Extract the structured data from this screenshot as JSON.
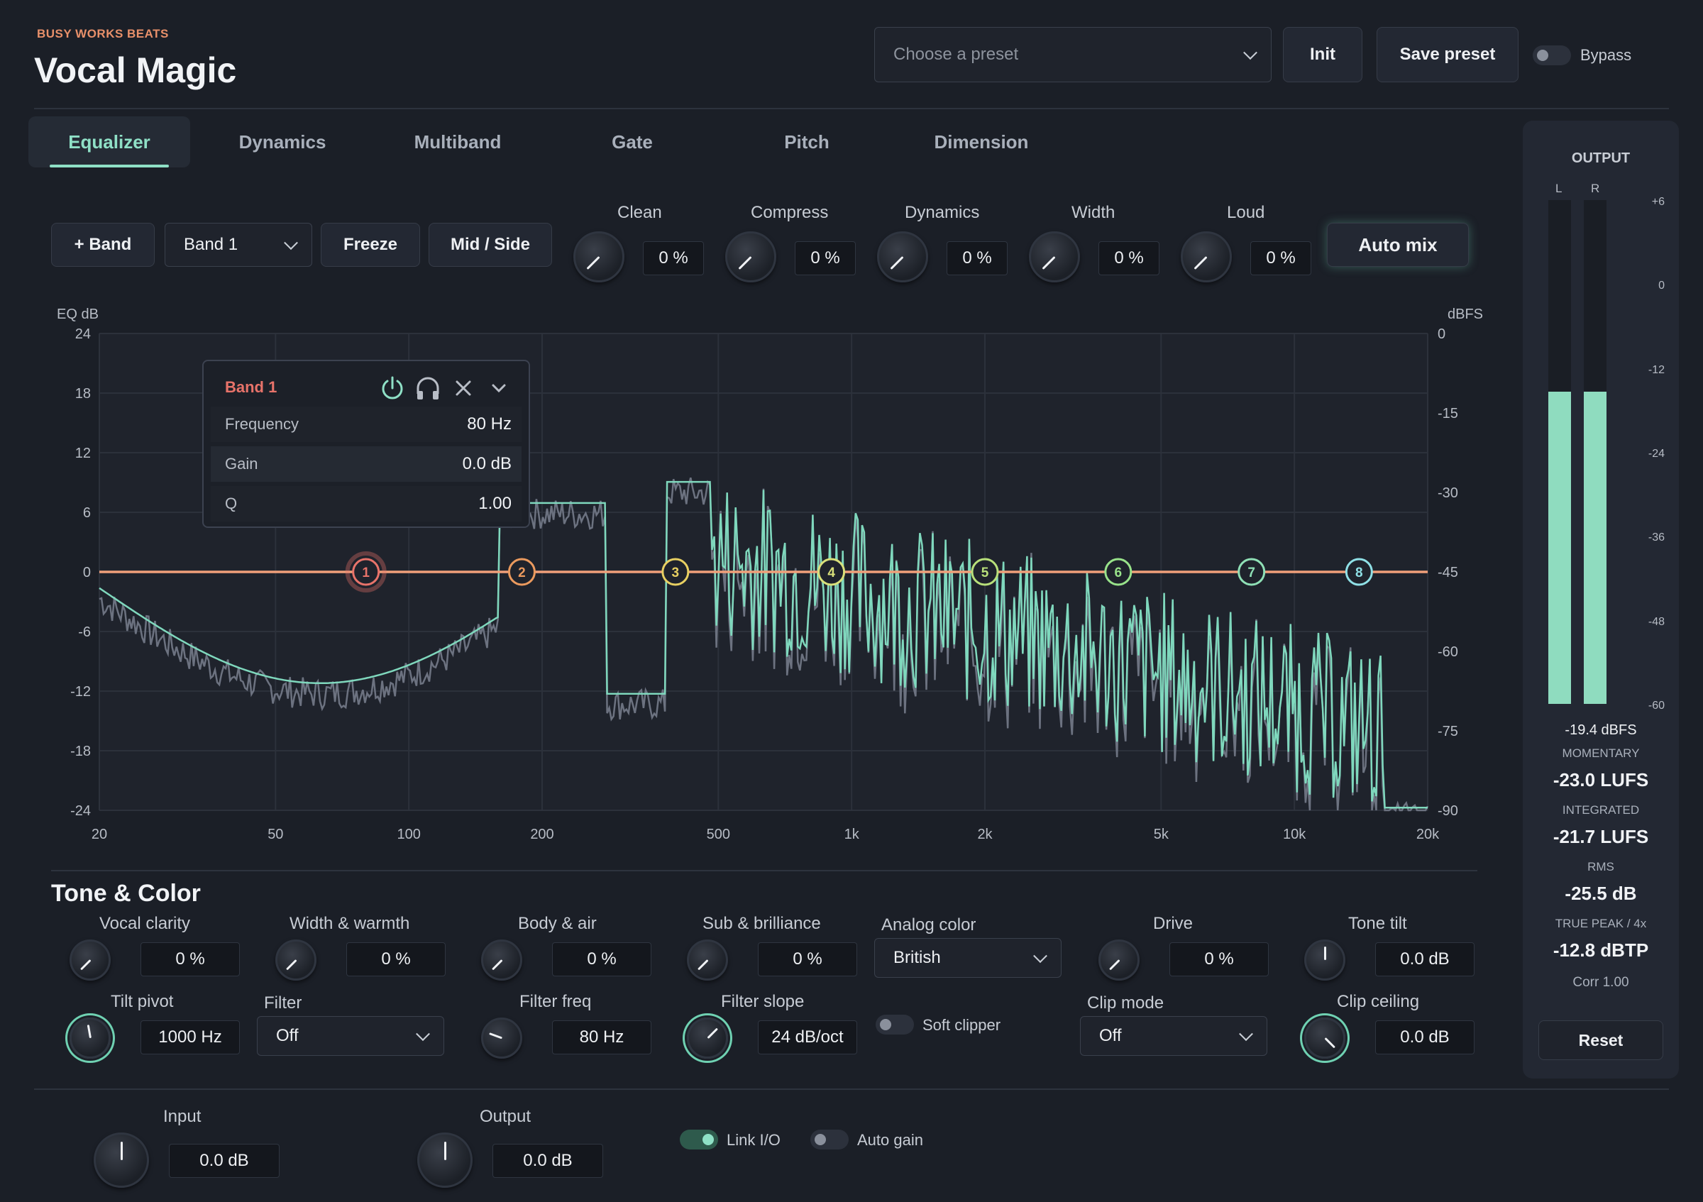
{
  "header": {
    "brand": "BUSY WORKS BEATS",
    "title": "Vocal Magic",
    "preset_placeholder": "Choose a preset",
    "init_label": "Init",
    "save_label": "Save preset",
    "bypass_label": "Bypass"
  },
  "tabs": [
    {
      "label": "Equalizer",
      "active": true
    },
    {
      "label": "Dynamics"
    },
    {
      "label": "Multiband"
    },
    {
      "label": "Gate"
    },
    {
      "label": "Pitch"
    },
    {
      "label": "Dimension"
    }
  ],
  "toolbar": {
    "add_band_label": "+ Band",
    "band_select": "Band 1",
    "freeze_label": "Freeze",
    "midside_label": "Mid / Side",
    "automix_label": "Auto mix",
    "macros": [
      {
        "label": "Clean",
        "value": "0 %"
      },
      {
        "label": "Compress",
        "value": "0 %"
      },
      {
        "label": "Dynamics",
        "value": "0 %"
      },
      {
        "label": "Width",
        "value": "0 %"
      },
      {
        "label": "Loud",
        "value": "0 %"
      }
    ]
  },
  "eq": {
    "left_axis_title": "EQ dB",
    "right_axis_title": "dBFS",
    "left_ticks": [
      "24",
      "18",
      "12",
      "6",
      "0",
      "-6",
      "-12",
      "-18",
      "-24"
    ],
    "right_ticks": [
      "0",
      "-15",
      "-30",
      "-45",
      "-60",
      "-75",
      "-90"
    ],
    "freq_ticks": [
      "20",
      "50",
      "100",
      "200",
      "500",
      "1k",
      "2k",
      "5k",
      "10k",
      "20k"
    ],
    "accent_line": "#f0a07a",
    "spectrum_color": "#7fd8bd",
    "bands": [
      {
        "n": "1",
        "freq_hz": 80,
        "color": "#e8736a"
      },
      {
        "n": "2",
        "freq_hz": 180,
        "color": "#eb9a5e"
      },
      {
        "n": "3",
        "freq_hz": 400,
        "color": "#e8d062"
      },
      {
        "n": "4",
        "freq_hz": 900,
        "color": "#d9e07a"
      },
      {
        "n": "5",
        "freq_hz": 2000,
        "color": "#b8e07a"
      },
      {
        "n": "6",
        "freq_hz": 4000,
        "color": "#98e28a"
      },
      {
        "n": "7",
        "freq_hz": 8000,
        "color": "#8fe0b6"
      },
      {
        "n": "8",
        "freq_hz": 14000,
        "color": "#8fe0e6"
      }
    ],
    "popup": {
      "title": "Band 1",
      "freq_label": "Frequency",
      "freq_value": "80 Hz",
      "gain_label": "Gain",
      "gain_value": "0.0 dB",
      "q_label": "Q",
      "q_value": "1.00"
    }
  },
  "tone": {
    "heading": "Tone & Color",
    "row1": [
      {
        "label": "Vocal clarity",
        "value": "0 %"
      },
      {
        "label": "Width & warmth",
        "value": "0 %"
      },
      {
        "label": "Body & air",
        "value": "0 %"
      },
      {
        "label": "Sub & brilliance",
        "value": "0 %"
      }
    ],
    "analog_label": "Analog color",
    "analog_value": "British",
    "drive_label": "Drive",
    "drive_value": "0 %",
    "tilt_label": "Tone tilt",
    "tilt_value": "0.0 dB",
    "pivot_label": "Tilt pivot",
    "pivot_value": "1000 Hz",
    "filter_label": "Filter",
    "filter_value": "Off",
    "filter_freq_label": "Filter freq",
    "filter_freq_value": "80 Hz",
    "filter_slope_label": "Filter slope",
    "filter_slope_value": "24 dB/oct",
    "soft_clipper_label": "Soft clipper",
    "clip_mode_label": "Clip mode",
    "clip_mode_value": "Off",
    "clip_ceiling_label": "Clip ceiling",
    "clip_ceiling_value": "0.0 dB"
  },
  "footer": {
    "input_label": "Input",
    "input_value": "0.0 dB",
    "output_label": "Output",
    "output_value": "0.0 dB",
    "link_label": "Link I/O",
    "autogain_label": "Auto gain"
  },
  "meter": {
    "title": "OUTPUT",
    "l": "L",
    "r": "R",
    "scale": [
      "+6",
      "0",
      "-12",
      "-24",
      "-36",
      "-48",
      "-60"
    ],
    "level_fraction": 0.62,
    "peak": "-19.4 dBFS",
    "momentary_label": "MOMENTARY",
    "momentary": "-23.0 LUFS",
    "integrated_label": "INTEGRATED",
    "integrated": "-21.7 LUFS",
    "rms_label": "RMS",
    "rms": "-25.5 dB",
    "truepeak_label": "TRUE PEAK / 4x",
    "truepeak": "-12.8 dBTP",
    "corr": "Corr 1.00",
    "reset_label": "Reset"
  }
}
